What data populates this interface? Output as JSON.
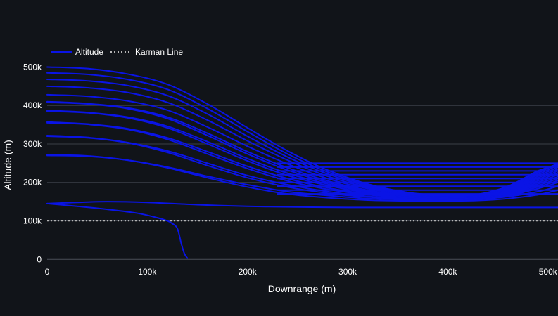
{
  "colors": {
    "background": "#111419",
    "grid": "#3a3f48",
    "zero_line": "#4a4f58",
    "altitude": "#0a14e6",
    "karman": "#b4b4b4",
    "text": "#ffffff"
  },
  "chart_data": {
    "type": "line",
    "title": "",
    "xlabel": "Downrange (m)",
    "ylabel": "Altitude (m)",
    "xlim": [
      0,
      510000
    ],
    "ylim": [
      -5000,
      510000
    ],
    "grid": true,
    "legend_position": "top-left",
    "legend": [
      {
        "label": "Altitude",
        "style": "solid",
        "color": "#0a14e6"
      },
      {
        "label": "Karman Line",
        "style": "dotted",
        "color": "#b4b4b4"
      }
    ],
    "x_ticks": [
      {
        "value": 0,
        "label": "0"
      },
      {
        "value": 100000,
        "label": "100k"
      },
      {
        "value": 200000,
        "label": "200k"
      },
      {
        "value": 300000,
        "label": "300k"
      },
      {
        "value": 400000,
        "label": "400k"
      },
      {
        "value": 500000,
        "label": "500k"
      }
    ],
    "y_ticks": [
      {
        "value": 0,
        "label": "0"
      },
      {
        "value": 100000,
        "label": "100k"
      },
      {
        "value": 200000,
        "label": "200k"
      },
      {
        "value": 300000,
        "label": "300k"
      },
      {
        "value": 400000,
        "label": "400k"
      },
      {
        "value": 500000,
        "label": "500k"
      }
    ],
    "karman_line": {
      "name": "Karman Line",
      "y": 100000
    },
    "altitude_series": [
      {
        "name": "Altitude",
        "x": [
          0,
          30000,
          60000,
          90000,
          110000,
          120000,
          125000,
          130000,
          134000,
          137000,
          140000
        ],
        "y": [
          145000,
          138000,
          130000,
          120000,
          108000,
          100000,
          93000,
          80000,
          40000,
          15000,
          3000
        ]
      },
      {
        "name": "Altitude",
        "x": [
          0,
          30000,
          60000,
          100000,
          150000,
          200000,
          250000,
          300000,
          400000,
          510000
        ],
        "y": [
          145000,
          148000,
          150000,
          148000,
          142000,
          138000,
          136000,
          135000,
          135000,
          135000
        ]
      },
      {
        "name": "Altitude",
        "x": [
          0,
          40000,
          80000,
          120000,
          160000,
          200000,
          240000,
          280000,
          320000,
          360000,
          400000,
          430000,
          460000,
          490000,
          510000
        ],
        "y": [
          270000,
          268000,
          258000,
          238000,
          212000,
          188000,
          170000,
          160000,
          154000,
          152000,
          152000,
          153000,
          158000,
          168000,
          180000
        ]
      },
      {
        "name": "Altitude",
        "x": [
          0,
          40000,
          80000,
          120000,
          160000,
          200000,
          240000,
          280000,
          320000,
          360000,
          400000,
          430000,
          460000,
          490000,
          510000
        ],
        "y": [
          272000,
          269000,
          258000,
          240000,
          216000,
          194000,
          176000,
          166000,
          158000,
          155000,
          154000,
          156000,
          163000,
          176000,
          190000
        ]
      },
      {
        "name": "Altitude",
        "x": [
          0,
          40000,
          80000,
          120000,
          160000,
          200000,
          240000,
          280000,
          320000,
          360000,
          400000,
          430000,
          460000,
          490000,
          510000
        ],
        "y": [
          320000,
          316000,
          303000,
          278000,
          244000,
          212000,
          188000,
          172000,
          162000,
          156000,
          155000,
          157000,
          166000,
          184000,
          200000
        ]
      },
      {
        "name": "Altitude",
        "x": [
          0,
          40000,
          80000,
          120000,
          160000,
          200000,
          240000,
          280000,
          320000,
          360000,
          400000,
          430000,
          460000,
          490000,
          510000
        ],
        "y": [
          322000,
          317000,
          304000,
          282000,
          250000,
          218000,
          194000,
          176000,
          164000,
          158000,
          156000,
          158000,
          168000,
          188000,
          205000
        ]
      },
      {
        "name": "Altitude",
        "x": [
          0,
          40000,
          80000,
          120000,
          160000,
          200000,
          240000,
          280000,
          320000,
          360000,
          400000,
          430000,
          460000,
          490000,
          510000
        ],
        "y": [
          355000,
          351000,
          338000,
          312000,
          274000,
          236000,
          204000,
          182000,
          168000,
          160000,
          157000,
          159000,
          170000,
          192000,
          210000
        ]
      },
      {
        "name": "Altitude",
        "x": [
          0,
          40000,
          80000,
          120000,
          160000,
          200000,
          240000,
          280000,
          320000,
          360000,
          400000,
          430000,
          460000,
          490000,
          510000
        ],
        "y": [
          357000,
          352000,
          340000,
          316000,
          280000,
          242000,
          210000,
          186000,
          170000,
          161000,
          158000,
          160000,
          172000,
          196000,
          215000
        ]
      },
      {
        "name": "Altitude",
        "x": [
          0,
          40000,
          80000,
          120000,
          160000,
          200000,
          240000,
          280000,
          320000,
          360000,
          400000,
          430000,
          460000,
          490000,
          510000
        ],
        "y": [
          385000,
          381000,
          368000,
          342000,
          300000,
          256000,
          218000,
          192000,
          173000,
          163000,
          159000,
          161000,
          174000,
          200000,
          220000
        ]
      },
      {
        "name": "Altitude",
        "x": [
          0,
          40000,
          80000,
          120000,
          160000,
          200000,
          240000,
          280000,
          320000,
          360000,
          400000,
          430000,
          460000,
          490000,
          510000
        ],
        "y": [
          387000,
          382000,
          370000,
          346000,
          306000,
          262000,
          224000,
          196000,
          176000,
          164000,
          160000,
          162000,
          176000,
          204000,
          225000
        ]
      },
      {
        "name": "Altitude",
        "x": [
          0,
          40000,
          80000,
          120000,
          160000,
          200000,
          240000,
          280000,
          320000,
          360000,
          400000,
          430000,
          460000,
          490000,
          510000
        ],
        "y": [
          408000,
          404000,
          392000,
          366000,
          322000,
          274000,
          232000,
          200000,
          178000,
          165000,
          161000,
          163000,
          178000,
          208000,
          230000
        ]
      },
      {
        "name": "Altitude",
        "x": [
          0,
          40000,
          80000,
          120000,
          160000,
          200000,
          240000,
          280000,
          320000,
          360000,
          400000,
          430000,
          460000,
          490000,
          510000
        ],
        "y": [
          410000,
          405000,
          394000,
          370000,
          328000,
          280000,
          238000,
          204000,
          180000,
          166000,
          162000,
          164000,
          180000,
          212000,
          235000
        ]
      },
      {
        "name": "Altitude",
        "x": [
          0,
          40000,
          80000,
          120000,
          160000,
          200000,
          240000,
          280000,
          320000,
          360000,
          400000,
          430000,
          460000,
          490000,
          510000
        ],
        "y": [
          428000,
          424000,
          412000,
          388000,
          344000,
          294000,
          248000,
          210000,
          184000,
          168000,
          163000,
          165000,
          182000,
          216000,
          240000
        ]
      },
      {
        "name": "Altitude",
        "x": [
          0,
          40000,
          80000,
          120000,
          160000,
          200000,
          240000,
          280000,
          320000,
          360000,
          400000,
          430000,
          460000,
          490000,
          510000
        ],
        "y": [
          450000,
          446000,
          434000,
          408000,
          362000,
          308000,
          258000,
          216000,
          187000,
          169000,
          164000,
          166000,
          184000,
          220000,
          245000
        ]
      },
      {
        "name": "Altitude",
        "x": [
          0,
          40000,
          80000,
          120000,
          160000,
          200000,
          240000,
          280000,
          320000,
          360000,
          400000,
          430000,
          460000,
          490000,
          510000
        ],
        "y": [
          468000,
          464000,
          452000,
          426000,
          378000,
          320000,
          266000,
          222000,
          190000,
          170000,
          165000,
          167000,
          186000,
          224000,
          250000
        ]
      },
      {
        "name": "Altitude",
        "x": [
          0,
          40000,
          80000,
          120000,
          160000,
          200000,
          240000,
          280000,
          320000,
          360000,
          400000,
          430000,
          460000,
          490000,
          510000
        ],
        "y": [
          485000,
          481000,
          468000,
          442000,
          392000,
          332000,
          274000,
          227000,
          193000,
          172000,
          165000,
          168000,
          188000,
          228000,
          248000
        ]
      },
      {
        "name": "Altitude",
        "x": [
          0,
          40000,
          80000,
          120000,
          160000,
          200000,
          240000,
          280000,
          320000,
          360000,
          400000,
          430000,
          460000,
          490000,
          510000
        ],
        "y": [
          500000,
          496000,
          482000,
          455000,
          404000,
          342000,
          282000,
          232000,
          196000,
          174000,
          166000,
          169000,
          190000,
          230000,
          245000
        ]
      },
      {
        "name": "Altitude",
        "x": [
          230000,
          510000
        ],
        "y": [
          250000,
          250000
        ]
      },
      {
        "name": "Altitude",
        "x": [
          230000,
          510000
        ],
        "y": [
          240000,
          240000
        ]
      },
      {
        "name": "Altitude",
        "x": [
          230000,
          510000
        ],
        "y": [
          230000,
          230000
        ]
      },
      {
        "name": "Altitude",
        "x": [
          230000,
          510000
        ],
        "y": [
          220000,
          220000
        ]
      },
      {
        "name": "Altitude",
        "x": [
          230000,
          510000
        ],
        "y": [
          210000,
          210000
        ]
      },
      {
        "name": "Altitude",
        "x": [
          230000,
          510000
        ],
        "y": [
          200000,
          200000
        ]
      },
      {
        "name": "Altitude",
        "x": [
          230000,
          510000
        ],
        "y": [
          190000,
          190000
        ]
      },
      {
        "name": "Altitude",
        "x": [
          230000,
          510000
        ],
        "y": [
          180000,
          180000
        ]
      },
      {
        "name": "Altitude",
        "x": [
          230000,
          510000
        ],
        "y": [
          170000,
          170000
        ]
      }
    ]
  }
}
